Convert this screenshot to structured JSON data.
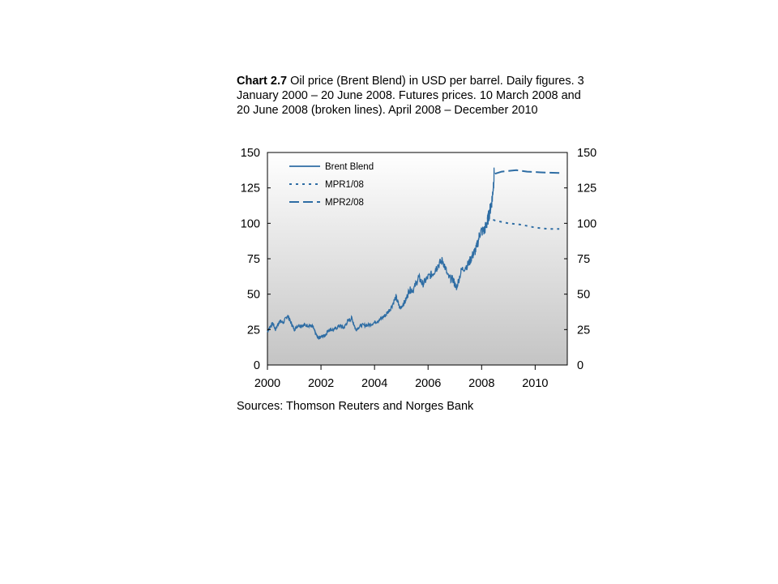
{
  "caption": {
    "lead": "Chart 2.7",
    "text": "Oil price (Brent Blend) in USD per barrel. Daily figures. 3 January 2000 – 20 June 2008. Futures prices. 10 March 2008 and 20 June 2008 (broken lines). April 2008 – December 2010"
  },
  "sources": "Sources: Thomson Reuters and Norges Bank",
  "colors": {
    "series": "#2e6da4",
    "plot_top": "#ffffff",
    "plot_bottom": "#c4c4c4"
  },
  "chart_data": {
    "type": "line",
    "xlim": [
      2000,
      2011.2
    ],
    "ylim": [
      0,
      150
    ],
    "x_ticks": [
      "2000",
      "2002",
      "2004",
      "2006",
      "2008",
      "2010"
    ],
    "y_ticks_left": [
      "0",
      "25",
      "50",
      "75",
      "100",
      "125",
      "150"
    ],
    "y_ticks_right": [
      "0",
      "25",
      "50",
      "75",
      "100",
      "125",
      "150"
    ],
    "grid": false,
    "legend_position": "top-left",
    "series": [
      {
        "name": "Brent Blend",
        "style": "solid",
        "points": [
          [
            2000.0,
            23.5
          ],
          [
            2000.1,
            27
          ],
          [
            2000.2,
            29.5
          ],
          [
            2000.3,
            25
          ],
          [
            2000.45,
            31
          ],
          [
            2000.6,
            30
          ],
          [
            2000.75,
            35
          ],
          [
            2000.85,
            31
          ],
          [
            2001.0,
            25
          ],
          [
            2001.15,
            28
          ],
          [
            2001.35,
            28
          ],
          [
            2001.55,
            28
          ],
          [
            2001.7,
            27
          ],
          [
            2001.8,
            22
          ],
          [
            2001.9,
            19
          ],
          [
            2002.0,
            20
          ],
          [
            2002.15,
            21
          ],
          [
            2002.3,
            25
          ],
          [
            2002.5,
            25
          ],
          [
            2002.7,
            28
          ],
          [
            2002.85,
            26
          ],
          [
            2003.0,
            31
          ],
          [
            2003.15,
            33
          ],
          [
            2003.3,
            25
          ],
          [
            2003.5,
            28
          ],
          [
            2003.75,
            28
          ],
          [
            2004.0,
            30
          ],
          [
            2004.2,
            32
          ],
          [
            2004.4,
            35
          ],
          [
            2004.6,
            40
          ],
          [
            2004.8,
            48
          ],
          [
            2004.95,
            40
          ],
          [
            2005.15,
            45
          ],
          [
            2005.3,
            53
          ],
          [
            2005.45,
            53
          ],
          [
            2005.65,
            62
          ],
          [
            2005.8,
            57
          ],
          [
            2006.0,
            62
          ],
          [
            2006.2,
            65
          ],
          [
            2006.35,
            70
          ],
          [
            2006.55,
            74
          ],
          [
            2006.75,
            62
          ],
          [
            2006.95,
            60
          ],
          [
            2007.05,
            54
          ],
          [
            2007.25,
            67
          ],
          [
            2007.5,
            71
          ],
          [
            2007.65,
            77
          ],
          [
            2007.8,
            82
          ],
          [
            2007.95,
            94
          ],
          [
            2008.1,
            95
          ],
          [
            2008.2,
            100
          ],
          [
            2008.3,
            108
          ],
          [
            2008.4,
            118
          ],
          [
            2008.47,
            135
          ]
        ]
      },
      {
        "name": "MPR1/08",
        "style": "dotted",
        "points": [
          [
            2008.2,
            104
          ],
          [
            2008.5,
            102
          ],
          [
            2008.75,
            101
          ],
          [
            2009.0,
            100
          ],
          [
            2009.5,
            99
          ],
          [
            2010.0,
            97
          ],
          [
            2010.5,
            96
          ],
          [
            2010.9,
            96
          ]
        ]
      },
      {
        "name": "MPR2/08",
        "style": "dashed",
        "points": [
          [
            2008.5,
            135
          ],
          [
            2008.75,
            136.5
          ],
          [
            2009.0,
            137
          ],
          [
            2009.3,
            137.5
          ],
          [
            2009.7,
            136.5
          ],
          [
            2010.2,
            136
          ],
          [
            2010.9,
            135.5
          ]
        ]
      }
    ]
  }
}
